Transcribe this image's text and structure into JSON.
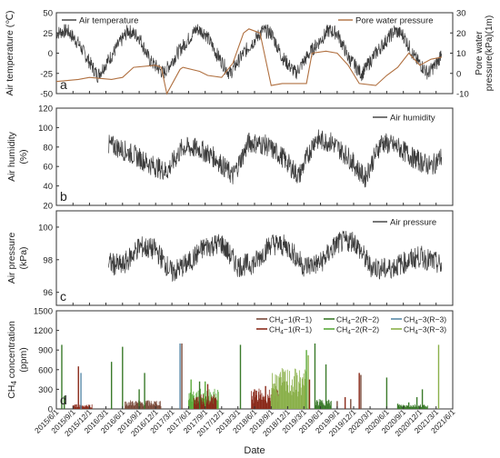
{
  "chart_data": [
    {
      "type": "line",
      "panel_label": "a",
      "ylabel": "Air temperature (℃)",
      "ylabel_right": "Pore water pressure(kPa)(1m)",
      "ylim": [
        -50,
        50
      ],
      "yticks": [
        -50,
        -25,
        0,
        25,
        50
      ],
      "ylim_right": [
        -10,
        30
      ],
      "yticks_right": [
        -10,
        0,
        10,
        20,
        30
      ],
      "series": [
        {
          "name": "Air temperature",
          "color": "#3b3b3b",
          "axis": "left",
          "pattern": "seasonal_band",
          "x": [
            "2015/6/1",
            "2015/8/1",
            "2015/10/1",
            "2016/1/15",
            "2016/4/1",
            "2016/7/1",
            "2016/9/1",
            "2016/11/1",
            "2017/1/15",
            "2017/4/1",
            "2017/7/15",
            "2017/9/1",
            "2017/11/1",
            "2018/1/15",
            "2018/4/1",
            "2018/7/15",
            "2018/9/1",
            "2018/11/1",
            "2019/1/15",
            "2019/4/1",
            "2019/7/15",
            "2019/9/1",
            "2019/11/1",
            "2020/1/15",
            "2020/4/1",
            "2020/7/15",
            "2020/9/1",
            "2020/11/1",
            "2021/1/15",
            "2021/3/15",
            "2021/4/1"
          ],
          "values": [
            25,
            28,
            12,
            -28,
            -3,
            28,
            20,
            -10,
            -25,
            0,
            30,
            25,
            0,
            -26,
            0,
            28,
            25,
            -5,
            -25,
            0,
            28,
            25,
            -5,
            -26,
            0,
            28,
            22,
            -5,
            -25,
            -10,
            5
          ]
        },
        {
          "name": "Pore water pressure",
          "color": "#b07040",
          "axis": "right",
          "x": [
            "2015/6/1",
            "2015/10/1",
            "2015/12/1",
            "2016/4/1",
            "2016/6/1",
            "2016/8/1",
            "2016/12/1",
            "2017/1/1",
            "2017/2/1",
            "2017/4/15",
            "2017/5/1",
            "2017/8/1",
            "2017/9/15",
            "2017/12/1",
            "2018/2/1",
            "2018/4/1",
            "2018/5/1",
            "2018/7/1",
            "2018/9/1",
            "2018/11/1",
            "2019/1/1",
            "2019/3/15",
            "2019/4/15",
            "2019/7/1",
            "2019/9/1",
            "2019/11/1",
            "2020/1/1",
            "2020/4/1",
            "2020/6/1",
            "2020/8/1",
            "2020/10/1",
            "2020/12/1",
            "2021/2/1",
            "2021/4/1"
          ],
          "values": [
            -4,
            -3,
            -2,
            -3,
            -2,
            3,
            4,
            3,
            -10,
            2,
            3,
            1,
            -1,
            -2,
            5,
            20,
            22,
            20,
            -6,
            -5,
            -5,
            -5,
            10,
            11,
            10,
            4,
            -5,
            -6,
            -1,
            3,
            10,
            4,
            7,
            8
          ]
        }
      ]
    },
    {
      "type": "line",
      "panel_label": "b",
      "ylabel": "Air humidity (%)",
      "ylim": [
        20,
        120
      ],
      "yticks": [
        20,
        40,
        60,
        80,
        100,
        120
      ],
      "series": [
        {
          "name": "Air humidity",
          "color": "#3b3b3b",
          "pattern": "noisy",
          "x": [
            "2016/3/15",
            "2016/5/1",
            "2016/8/1",
            "2016/11/1",
            "2017/2/1",
            "2017/5/1",
            "2017/8/1",
            "2017/11/1",
            "2018/2/1",
            "2018/5/1",
            "2018/8/1",
            "2018/11/1",
            "2019/2/1",
            "2019/5/1",
            "2019/8/1",
            "2019/11/1",
            "2020/2/1",
            "2020/5/1",
            "2020/8/1",
            "2020/11/1",
            "2021/2/1",
            "2021/4/1"
          ],
          "values": [
            82,
            80,
            72,
            62,
            55,
            80,
            78,
            68,
            50,
            85,
            82,
            70,
            50,
            88,
            85,
            70,
            48,
            85,
            80,
            68,
            60,
            70
          ]
        }
      ]
    },
    {
      "type": "line",
      "panel_label": "c",
      "ylabel": "Air pressure (kPa)",
      "ylim": [
        95.2,
        101
      ],
      "yticks": [
        96,
        98,
        100
      ],
      "series": [
        {
          "name": "Air pressure",
          "color": "#3b3b3b",
          "pattern": "noisy",
          "x": [
            "2016/3/15",
            "2016/6/1",
            "2016/9/1",
            "2016/12/1",
            "2017/3/1",
            "2017/6/1",
            "2017/9/1",
            "2017/12/1",
            "2018/3/1",
            "2018/6/1",
            "2018/9/1",
            "2018/12/1",
            "2019/3/1",
            "2019/6/1",
            "2019/9/1",
            "2019/12/1",
            "2020/3/1",
            "2020/6/1",
            "2020/9/1",
            "2020/12/1",
            "2021/3/1",
            "2021/4/1"
          ],
          "values": [
            97.8,
            97.6,
            98.8,
            98.6,
            97.2,
            97.8,
            98.8,
            99.0,
            97.6,
            97.8,
            99.0,
            98.8,
            97.6,
            97.8,
            99.0,
            99.2,
            97.6,
            97.4,
            97.8,
            98.2,
            97.8,
            97.6
          ]
        }
      ]
    },
    {
      "type": "bar",
      "panel_label": "d",
      "ylabel": "CH4 concentration (ppm)",
      "xlabel": "Date",
      "ylim": [
        0,
        1500
      ],
      "yticks": [
        0,
        300,
        600,
        900,
        1200,
        1500
      ],
      "xticks": [
        "2015/6/1",
        "2015/9/1",
        "2015/12/1",
        "2016/3/1",
        "2016/6/1",
        "2016/9/1",
        "2016/12/1",
        "2017/3/1",
        "2017/6/1",
        "2017/9/1",
        "2017/12/1",
        "2018/3/1",
        "2018/6/1",
        "2018/9/1",
        "2018/12/1",
        "2019/3/1",
        "2019/6/1",
        "2019/9/1",
        "2019/12/1",
        "2020/3/1",
        "2020/6/1",
        "2020/9/1",
        "2020/12/1",
        "2021/3/1",
        "2021/6/1"
      ],
      "legend": [
        {
          "name": "CH4−1(R−1)",
          "color": "#7a4a3a"
        },
        {
          "name": "CH4−2(R−2)",
          "color": "#3a7a2a"
        },
        {
          "name": "CH4−3(R−3)",
          "color": "#5a8aa8"
        },
        {
          "name": "CH4−1(R−1)",
          "color": "#8a2a1a"
        },
        {
          "name": "CH4−2(R−2)",
          "color": "#5aaa3a"
        },
        {
          "name": "CH4−3(R−3)",
          "color": "#8ab04a"
        }
      ],
      "spikes": [
        {
          "date": "2015/7/1",
          "value": 980,
          "color": "#3a7a2a"
        },
        {
          "date": "2015/7/15",
          "value": 200,
          "color": "#3a7a2a"
        },
        {
          "date": "2015/10/1",
          "value": 650,
          "color": "#8a2a1a"
        },
        {
          "date": "2015/10/15",
          "value": 550,
          "color": "#5a8aa8"
        },
        {
          "date": "2016/4/1",
          "value": 720,
          "color": "#3a7a2a"
        },
        {
          "date": "2016/6/1",
          "value": 950,
          "color": "#3a7a2a"
        },
        {
          "date": "2016/9/1",
          "value": 300,
          "color": "#3a7a2a"
        },
        {
          "date": "2016/10/1",
          "value": 550,
          "color": "#3a7a2a"
        },
        {
          "date": "2017/4/15",
          "value": 1000,
          "color": "#5a8aa8"
        },
        {
          "date": "2017/4/25",
          "value": 1000,
          "color": "#7a4a3a"
        },
        {
          "date": "2017/6/15",
          "value": 450,
          "color": "#5aaa3a"
        },
        {
          "date": "2017/8/1",
          "value": 420,
          "color": "#3a7a2a"
        },
        {
          "date": "2017/9/1",
          "value": 420,
          "color": "#5aaa3a"
        },
        {
          "date": "2017/9/15",
          "value": 380,
          "color": "#8a2a1a"
        },
        {
          "date": "2018/3/15",
          "value": 980,
          "color": "#3a7a2a"
        },
        {
          "date": "2018/6/1",
          "value": 300,
          "color": "#8a2a1a"
        },
        {
          "date": "2018/8/1",
          "value": 350,
          "color": "#8a2a1a"
        },
        {
          "date": "2019/3/15",
          "value": 900,
          "color": "#5aaa3a"
        },
        {
          "date": "2019/3/25",
          "value": 820,
          "color": "#8ab04a"
        },
        {
          "date": "2019/4/1",
          "value": 450,
          "color": "#8a2a1a"
        },
        {
          "date": "2019/5/1",
          "value": 1000,
          "color": "#3a7a2a"
        },
        {
          "date": "2019/7/1",
          "value": 680,
          "color": "#3a7a2a"
        },
        {
          "date": "2019/9/1",
          "value": 120,
          "color": "#7a4a3a"
        },
        {
          "date": "2019/10/15",
          "value": 180,
          "color": "#8a2a1a"
        },
        {
          "date": "2019/11/15",
          "value": 150,
          "color": "#7a4a3a"
        },
        {
          "date": "2020/1/1",
          "value": 550,
          "color": "#8a2a1a"
        },
        {
          "date": "2020/1/10",
          "value": 520,
          "color": "#7a4a3a"
        },
        {
          "date": "2020/6/1",
          "value": 480,
          "color": "#3a7a2a"
        },
        {
          "date": "2020/8/1",
          "value": 80,
          "color": "#3a7a2a"
        },
        {
          "date": "2020/10/1",
          "value": 100,
          "color": "#3a7a2a"
        },
        {
          "date": "2020/11/15",
          "value": 180,
          "color": "#3a7a2a"
        },
        {
          "date": "2020/12/15",
          "value": 300,
          "color": "#3a7a2a"
        },
        {
          "date": "2021/3/15",
          "value": 980,
          "color": "#8ab04a"
        }
      ],
      "bands": [
        {
          "start": "2015/9/1",
          "end": "2015/12/15",
          "level": 60,
          "color": "#8a2a1a"
        },
        {
          "start": "2016/6/15",
          "end": "2017/1/1",
          "level": 110,
          "color": "#7a4a3a"
        },
        {
          "start": "2017/6/1",
          "end": "2017/11/15",
          "level": 250,
          "color": "#5aaa3a"
        },
        {
          "start": "2017/7/1",
          "end": "2017/11/1",
          "level": 180,
          "color": "#8a2a1a"
        },
        {
          "start": "2018/5/15",
          "end": "2018/10/15",
          "level": 250,
          "color": "#8a2a1a"
        },
        {
          "start": "2018/9/1",
          "end": "2019/3/15",
          "level": 500,
          "color": "#8ab04a"
        },
        {
          "start": "2019/5/1",
          "end": "2019/8/1",
          "level": 120,
          "color": "#3a7a2a"
        },
        {
          "start": "2020/8/1",
          "end": "2021/1/15",
          "level": 60,
          "color": "#3a7a2a"
        }
      ]
    }
  ]
}
